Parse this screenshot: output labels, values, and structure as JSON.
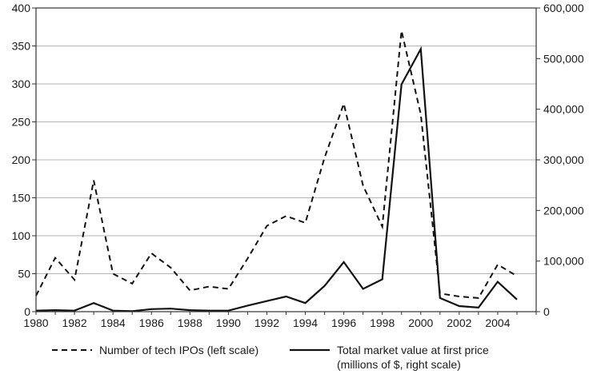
{
  "chart_data": {
    "type": "line",
    "title": "",
    "xlabel": "",
    "ylabel": "",
    "x": [
      1980,
      1981,
      1982,
      1983,
      1984,
      1985,
      1986,
      1987,
      1988,
      1989,
      1990,
      1991,
      1992,
      1993,
      1994,
      1995,
      1996,
      1997,
      1998,
      1999,
      2000,
      2001,
      2002,
      2003,
      2004,
      2005
    ],
    "xlim": [
      1980,
      2006
    ],
    "x_ticks": [
      "1980",
      "1982",
      "1984",
      "1986",
      "1988",
      "1990",
      "1992",
      "1994",
      "1996",
      "1998",
      "2000",
      "2002",
      "2004"
    ],
    "ylim_left": [
      0,
      400
    ],
    "y_ticks_left": [
      "0",
      "50",
      "100",
      "150",
      "200",
      "250",
      "300",
      "350",
      "400"
    ],
    "ylim_right": [
      0,
      600000
    ],
    "y_ticks_right": [
      "0",
      "100,000",
      "200,000",
      "300,000",
      "400,000",
      "500,000",
      "600,000"
    ],
    "grid": true,
    "legend_position": "bottom",
    "series": [
      {
        "name": "Number of tech IPOs (left scale)",
        "axis": "left",
        "style": "dashed",
        "values": [
          21,
          71,
          42,
          173,
          50,
          37,
          77,
          58,
          28,
          33,
          30,
          70,
          113,
          126,
          117,
          203,
          274,
          166,
          112,
          370,
          260,
          24,
          20,
          18,
          62,
          47
        ]
      },
      {
        "name": "Total market value at first price",
        "name_line2": "(millions of $, right scale)",
        "axis": "right",
        "style": "solid",
        "values": [
          2000,
          3000,
          2000,
          17000,
          2000,
          1000,
          5000,
          6000,
          3000,
          2000,
          2000,
          12000,
          21000,
          30000,
          17000,
          51000,
          98000,
          45000,
          64000,
          449000,
          519000,
          27000,
          11000,
          8000,
          59000,
          24000
        ]
      }
    ]
  }
}
